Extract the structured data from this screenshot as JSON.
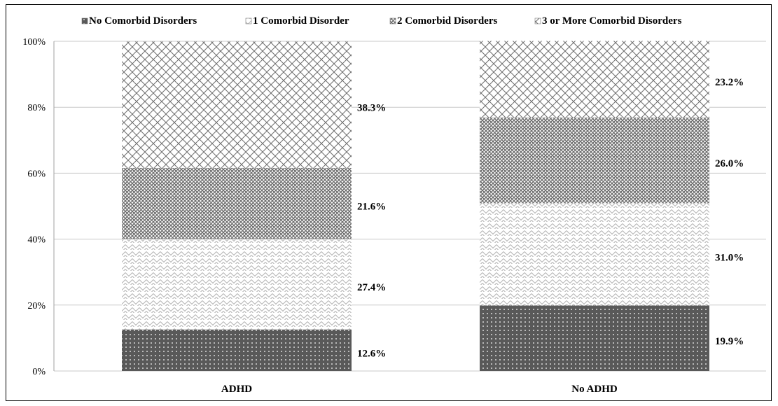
{
  "chart_data": {
    "type": "bar",
    "stacked": true,
    "categories": [
      "ADHD",
      "No ADHD"
    ],
    "series": [
      {
        "name": "No Comorbid Disorders",
        "values": [
          12.6,
          19.9
        ],
        "labels": [
          "12.6%",
          "19.9%"
        ],
        "pattern": "dots",
        "color": "#595959"
      },
      {
        "name": "1 Comorbid Disorder",
        "values": [
          27.4,
          31.0
        ],
        "labels": [
          "27.4%",
          "31.0%"
        ],
        "pattern": "light-zigzag",
        "color": "#d9d9d9"
      },
      {
        "name": "2 Comorbid Disorders",
        "values": [
          21.6,
          26.0
        ],
        "labels": [
          "21.6%",
          "26.0%"
        ],
        "pattern": "dense-crosshatch",
        "color": "#9a9a9a"
      },
      {
        "name": "3 or More Comorbid Disorders",
        "values": [
          38.3,
          23.2
        ],
        "labels": [
          "38.3%",
          "23.2%"
        ],
        "pattern": "diamond-crosshatch",
        "color": "#ffffff"
      }
    ],
    "yticks": [
      "0%",
      "20%",
      "40%",
      "60%",
      "80%",
      "100%"
    ],
    "ylim": [
      0,
      100
    ],
    "grid": true,
    "legend_position": "top"
  }
}
